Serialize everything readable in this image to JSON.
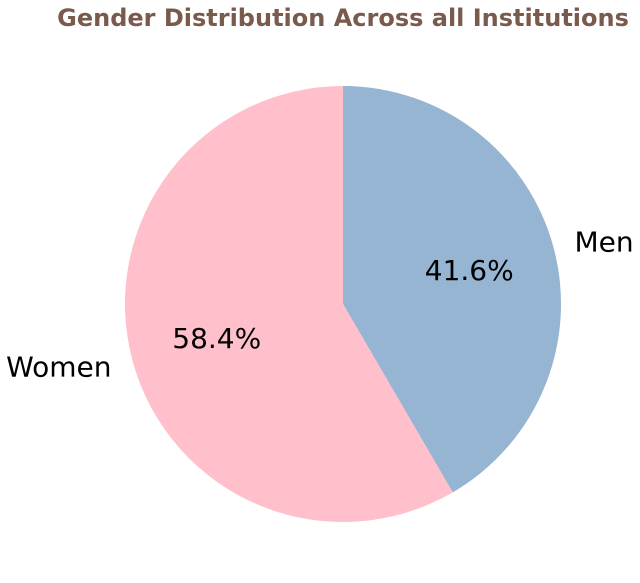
{
  "chart_data": {
    "type": "pie",
    "title": "Gender Distribution Across all Institutions",
    "categories": [
      "Men",
      "Women"
    ],
    "values": [
      41.6,
      58.4
    ],
    "percent_labels": [
      "41.6%",
      "58.4%"
    ],
    "colors": [
      "#96b5d3",
      "#ffc0cb"
    ],
    "start_angle_deg": 90,
    "direction": "clockwise",
    "legend": "none"
  },
  "colors": {
    "title": "#7a5a4c",
    "background": "#ffffff"
  }
}
